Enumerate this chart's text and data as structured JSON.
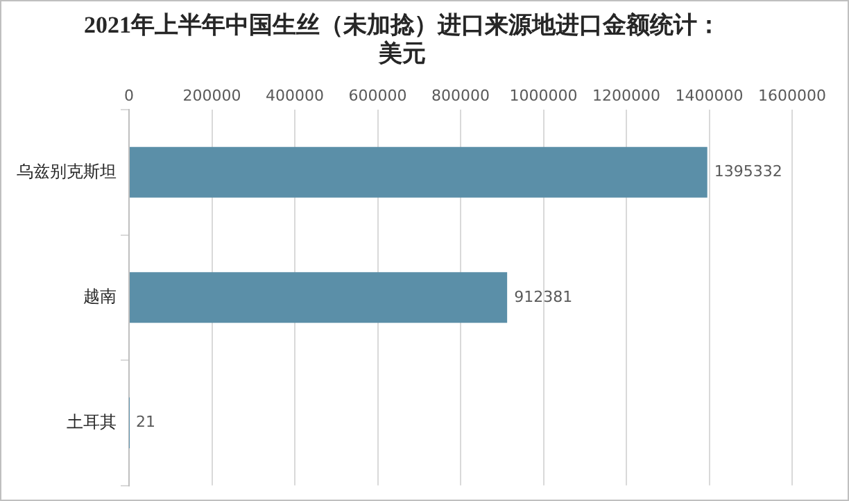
{
  "chart_data": {
    "type": "bar",
    "orientation": "horizontal",
    "title": "2021年上半年中国生丝（未加捻）进口来源地进口金额统计：美元",
    "categories": [
      "乌兹别克斯坦",
      "越南",
      "土耳其"
    ],
    "values": [
      1395332,
      912381,
      21
    ],
    "color": "#5b8fa8",
    "xlim": [
      0,
      1600000
    ],
    "xticks": [
      0,
      200000,
      400000,
      600000,
      800000,
      1000000,
      1200000,
      1400000,
      1600000
    ],
    "grid": "x",
    "data_labels": true,
    "legend": false
  }
}
